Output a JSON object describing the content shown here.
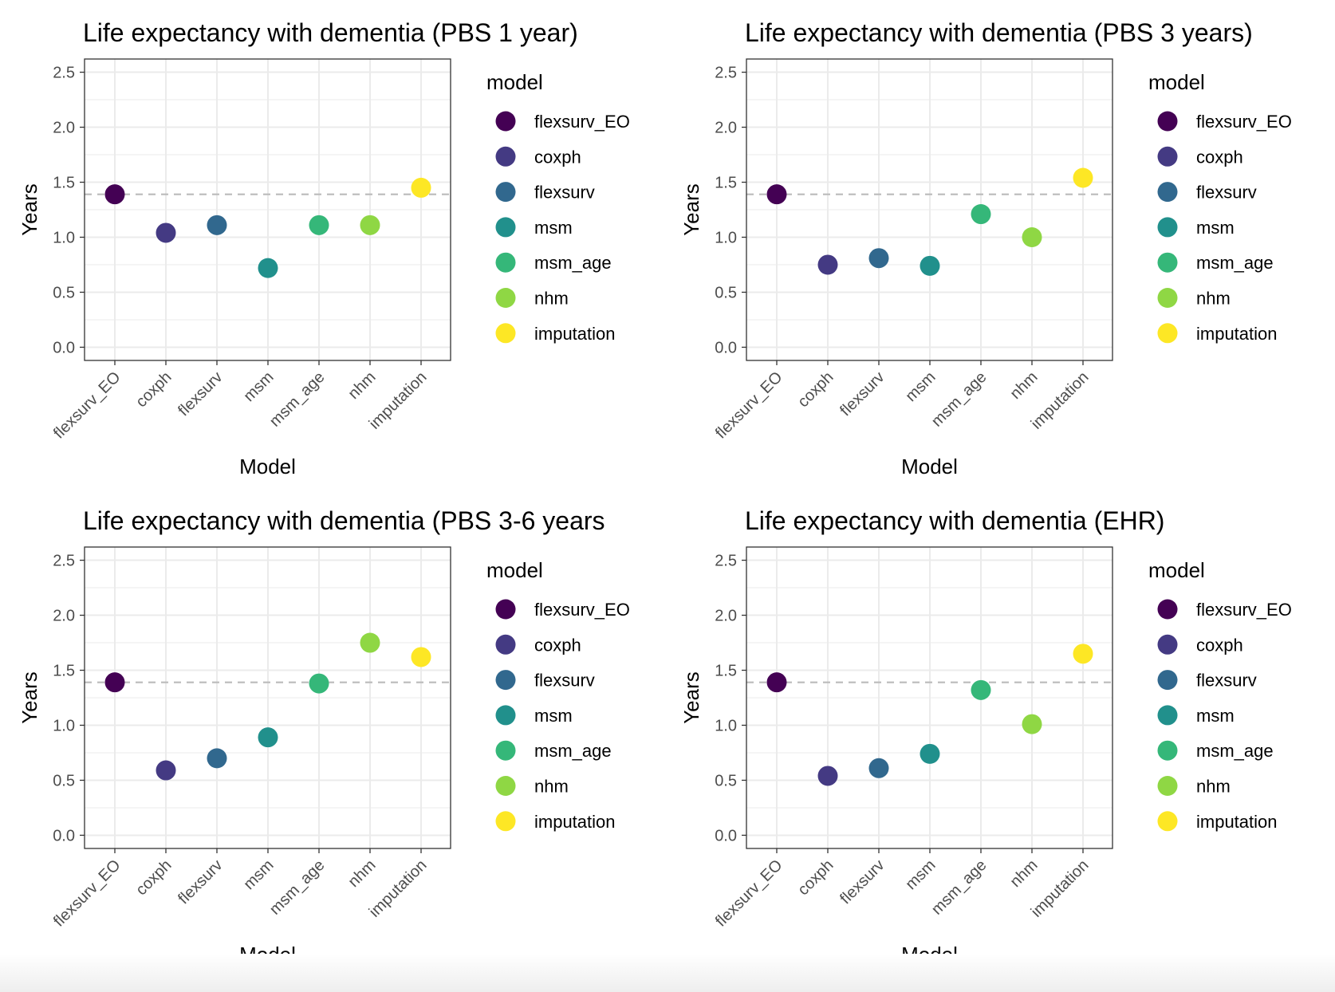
{
  "chart_data": [
    {
      "type": "scatter",
      "title": "Life expectancy with dementia (PBS 1 year)",
      "xlabel": "Model",
      "ylabel": "Years",
      "categories": [
        "flexsurv_EO",
        "coxph",
        "flexsurv",
        "msm",
        "msm_age",
        "nhm",
        "imputation"
      ],
      "values": [
        1.39,
        1.04,
        1.11,
        0.72,
        1.11,
        1.11,
        1.45
      ],
      "reference_line": 1.39,
      "ylim": [
        -0.12,
        2.62
      ],
      "yticks": [
        "0.0",
        "0.5",
        "1.0",
        "1.5",
        "2.0",
        "2.5"
      ],
      "legend": {
        "title": "model",
        "position": "right",
        "items": [
          "flexsurv_EO",
          "coxph",
          "flexsurv",
          "msm",
          "msm_age",
          "nhm",
          "imputation"
        ]
      }
    },
    {
      "type": "scatter",
      "title": "Life expectancy with dementia (PBS 3 years)",
      "xlabel": "Model",
      "ylabel": "Years",
      "categories": [
        "flexsurv_EO",
        "coxph",
        "flexsurv",
        "msm",
        "msm_age",
        "nhm",
        "imputation"
      ],
      "values": [
        1.39,
        0.75,
        0.81,
        0.74,
        1.21,
        1.0,
        1.54
      ],
      "reference_line": 1.39,
      "ylim": [
        -0.12,
        2.62
      ],
      "yticks": [
        "0.0",
        "0.5",
        "1.0",
        "1.5",
        "2.0",
        "2.5"
      ],
      "legend": {
        "title": "model",
        "position": "right",
        "items": [
          "flexsurv_EO",
          "coxph",
          "flexsurv",
          "msm",
          "msm_age",
          "nhm",
          "imputation"
        ]
      }
    },
    {
      "type": "scatter",
      "title": "Life expectancy with dementia (PBS 3-6 years",
      "xlabel": "Model",
      "ylabel": "Years",
      "categories": [
        "flexsurv_EO",
        "coxph",
        "flexsurv",
        "msm",
        "msm_age",
        "nhm",
        "imputation"
      ],
      "values": [
        1.39,
        0.59,
        0.7,
        0.89,
        1.38,
        1.75,
        1.62
      ],
      "reference_line": 1.39,
      "ylim": [
        -0.12,
        2.62
      ],
      "yticks": [
        "0.0",
        "0.5",
        "1.0",
        "1.5",
        "2.0",
        "2.5"
      ],
      "legend": {
        "title": "model",
        "position": "right",
        "items": [
          "flexsurv_EO",
          "coxph",
          "flexsurv",
          "msm",
          "msm_age",
          "nhm",
          "imputation"
        ]
      }
    },
    {
      "type": "scatter",
      "title": "Life expectancy with dementia (EHR)",
      "xlabel": "Model",
      "ylabel": "Years",
      "categories": [
        "flexsurv_EO",
        "coxph",
        "flexsurv",
        "msm",
        "msm_age",
        "nhm",
        "imputation"
      ],
      "values": [
        1.39,
        0.54,
        0.61,
        0.74,
        1.32,
        1.01,
        1.65
      ],
      "reference_line": 1.39,
      "ylim": [
        -0.12,
        2.62
      ],
      "yticks": [
        "0.0",
        "0.5",
        "1.0",
        "1.5",
        "2.0",
        "2.5"
      ],
      "legend": {
        "title": "model",
        "position": "right",
        "items": [
          "flexsurv_EO",
          "coxph",
          "flexsurv",
          "msm",
          "msm_age",
          "nhm",
          "imputation"
        ]
      }
    }
  ],
  "colors": {
    "flexsurv_EO": "#440154",
    "coxph": "#443A83",
    "flexsurv": "#31688E",
    "msm": "#21908C",
    "msm_age": "#35B779",
    "nhm": "#8FD744",
    "imputation": "#FDE725",
    "reference_line": "#BBBBBB",
    "grid": "#EBEBEB",
    "panel_border": "#333333"
  }
}
